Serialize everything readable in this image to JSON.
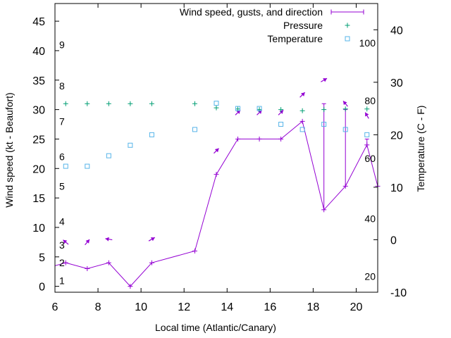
{
  "chart_data": {
    "type": "line",
    "title": "",
    "xlabel": "Local time (Atlantic/Canary)",
    "ylabel": "Wind speed (kt - Beaufort)",
    "y2label": "Temperature (C - F)",
    "xlim": [
      6,
      21
    ],
    "ylim": [
      -1,
      48
    ],
    "y2lim": [
      -10,
      45
    ],
    "x_ticks": [
      6,
      8,
      10,
      12,
      14,
      16,
      18,
      20
    ],
    "y_ticks": [
      0,
      5,
      10,
      15,
      20,
      25,
      30,
      35,
      40,
      45
    ],
    "y2_ticks": [
      -10,
      0,
      10,
      20,
      30,
      40
    ],
    "grid": false,
    "legend": "top-right",
    "colors": {
      "wind": "#9400d3",
      "pressure": "#009e73",
      "temperature": "#56b4e9"
    },
    "series": [
      {
        "name": "Wind speed, gusts, and direction",
        "type": "line",
        "axis": "left",
        "x": [
          5.5,
          6.5,
          7.5,
          8.5,
          9.5,
          10.5,
          12.5,
          13.5,
          14.5,
          15.5,
          16.5,
          17.5,
          18.5,
          19.5,
          20.5,
          21
        ],
        "y": [
          3,
          4,
          3,
          4,
          0,
          4,
          6,
          19,
          25,
          25,
          25,
          28,
          13,
          17,
          24,
          17
        ],
        "gusts": [
          null,
          null,
          null,
          null,
          null,
          null,
          null,
          null,
          null,
          null,
          null,
          null,
          31,
          30,
          25,
          null
        ],
        "direction_arrow_x": [
          6.5,
          7.5,
          8.5,
          10.5,
          13.5,
          14.5,
          15.5,
          16.5,
          17.5,
          18.5,
          19.5,
          20.5
        ],
        "direction_arrow_y": [
          7.5,
          7.5,
          8,
          8,
          23,
          29.5,
          29.5,
          29.5,
          32.5,
          35,
          31,
          29
        ],
        "direction_deg": [
          310,
          40,
          280,
          60,
          45,
          45,
          45,
          45,
          45,
          60,
          320,
          330
        ]
      },
      {
        "name": "Pressure",
        "type": "scatter",
        "axis": "left",
        "x": [
          6.5,
          7.5,
          8.5,
          9.5,
          10.5,
          12.5,
          13.5,
          14.5,
          15.5,
          16.5,
          17.5,
          18.5,
          19.5,
          20.5
        ],
        "y": [
          31,
          31,
          31,
          31,
          31,
          31,
          30.3,
          30.1,
          30,
          30,
          29.8,
          30,
          30.1,
          30.1
        ]
      },
      {
        "name": "Temperature",
        "type": "scatter",
        "axis": "right",
        "x": [
          6.5,
          7.5,
          8.5,
          9.5,
          10.5,
          12.5,
          13.5,
          14.5,
          15.5,
          16.5,
          17.5,
          18.5,
          19.5,
          20.5
        ],
        "y": [
          14,
          14,
          16,
          18,
          20,
          21,
          26,
          25,
          25,
          22,
          21,
          22,
          21,
          20
        ]
      }
    ],
    "beaufort_labels": [
      {
        "text": "1",
        "y": 1
      },
      {
        "text": "2",
        "y": 4
      },
      {
        "text": "3",
        "y": 7
      },
      {
        "text": "4",
        "y": 11
      },
      {
        "text": "5",
        "y": 17
      },
      {
        "text": "6",
        "y": 22
      },
      {
        "text": "7",
        "y": 28
      },
      {
        "text": "8",
        "y": 34
      },
      {
        "text": "9",
        "y": 41
      }
    ],
    "fahrenheit_labels": [
      {
        "text": "20",
        "t": -7
      },
      {
        "text": "40",
        "t": 4
      },
      {
        "text": "60",
        "t": 15.5
      },
      {
        "text": "80",
        "t": 26.5
      },
      {
        "text": "100",
        "t": 37.5
      }
    ]
  }
}
